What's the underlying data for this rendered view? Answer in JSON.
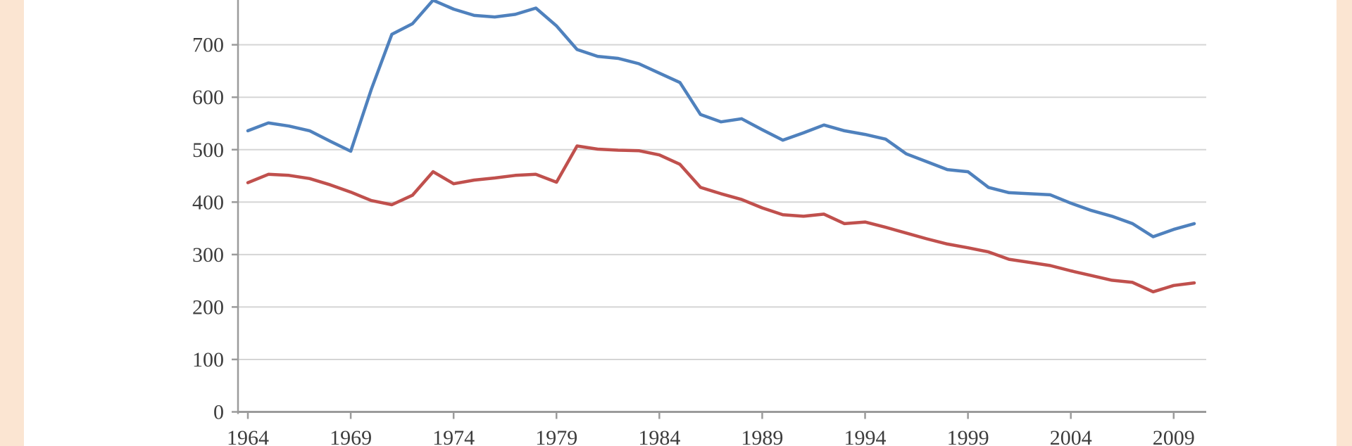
{
  "page": {
    "description": "Cropped line chart (no visible title, legend, or axis titles in the screenshot)",
    "border_color": "#FBE5D2",
    "background_color": "#FFFFFF"
  },
  "chart_data": {
    "type": "line",
    "title": "",
    "xlabel": "",
    "ylabel": "",
    "grid": true,
    "legend": "none-visible",
    "clipped_top": true,
    "ylim": [
      0,
      785
    ],
    "yticks": [
      0,
      100,
      200,
      300,
      400,
      500,
      600,
      700
    ],
    "xticks": [
      1964,
      1969,
      1974,
      1979,
      1984,
      1989,
      1994,
      1999,
      2004,
      2009
    ],
    "x": [
      1964,
      1965,
      1966,
      1967,
      1968,
      1969,
      1970,
      1971,
      1972,
      1973,
      1974,
      1975,
      1976,
      1977,
      1978,
      1979,
      1980,
      1981,
      1982,
      1983,
      1984,
      1985,
      1986,
      1987,
      1988,
      1989,
      1990,
      1991,
      1992,
      1993,
      1994,
      1995,
      1996,
      1997,
      1998,
      1999,
      2000,
      2001,
      2002,
      2003,
      2004,
      2005,
      2006,
      2007,
      2008,
      2009,
      2010
    ],
    "series": [
      {
        "name": "blue-series",
        "color": "#4F81BD",
        "values": [
          536,
          551,
          545,
          536,
          516,
          497,
          615,
          720,
          740,
          785,
          768,
          756,
          753,
          758,
          770,
          736,
          691,
          678,
          674,
          664,
          646,
          628,
          567,
          553,
          559,
          538,
          518,
          532,
          547,
          536,
          529,
          520,
          492,
          477,
          462,
          458,
          428,
          418,
          416,
          414,
          398,
          384,
          373,
          359,
          334,
          348,
          359
        ]
      },
      {
        "name": "red-series",
        "color": "#C0504D",
        "values": [
          437,
          453,
          451,
          445,
          433,
          419,
          403,
          395,
          413,
          458,
          435,
          442,
          446,
          451,
          453,
          438,
          507,
          501,
          499,
          498,
          490,
          472,
          428,
          416,
          405,
          389,
          376,
          373,
          377,
          359,
          362,
          352,
          341,
          330,
          320,
          313,
          305,
          291,
          285,
          279,
          269,
          260,
          251,
          247,
          229,
          241,
          246
        ]
      }
    ],
    "style": {
      "gridline_color": "#D5D5D5",
      "axis_color": "#9B9B9B",
      "tick_label_color": "#3D3D3D",
      "line_width": 4.5
    }
  }
}
